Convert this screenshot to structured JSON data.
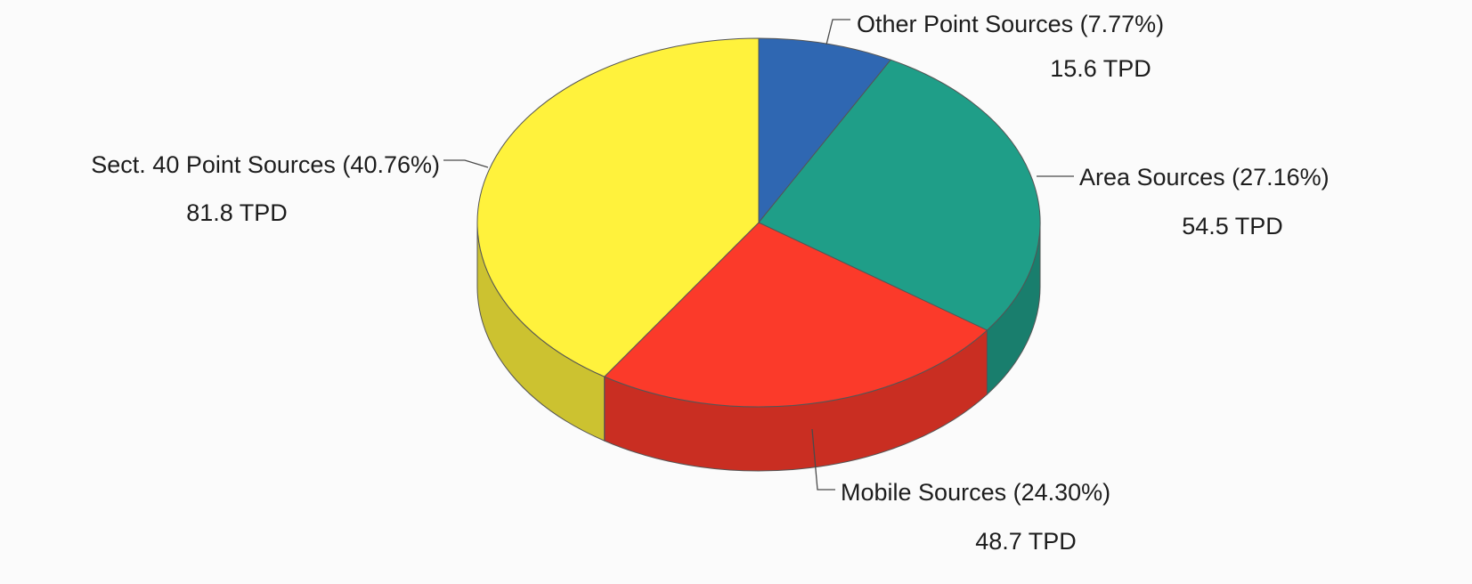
{
  "chart_data": {
    "type": "pie",
    "style": "3d",
    "units": "TPD",
    "slices": [
      {
        "label": "Other Point Sources",
        "percent_label": "(7.77%)",
        "percent": 7.77,
        "value_label": "15.6 TPD",
        "value": 15.6,
        "color": "#2f67b2"
      },
      {
        "label": "Area Sources",
        "percent_label": "(27.16%)",
        "percent": 27.16,
        "value_label": "54.5 TPD",
        "value": 54.5,
        "color": "#1f9e88"
      },
      {
        "label": "Mobile Sources",
        "percent_label": "(24.30%)",
        "percent": 24.3,
        "value_label": "48.7 TPD",
        "value": 48.7,
        "color": "#fb3a2a"
      },
      {
        "label": "Sect. 40 Point Sources",
        "percent_label": "(40.76%)",
        "percent": 40.76,
        "value_label": "81.8 TPD",
        "value": 81.8,
        "color": "#fff23c"
      }
    ]
  }
}
